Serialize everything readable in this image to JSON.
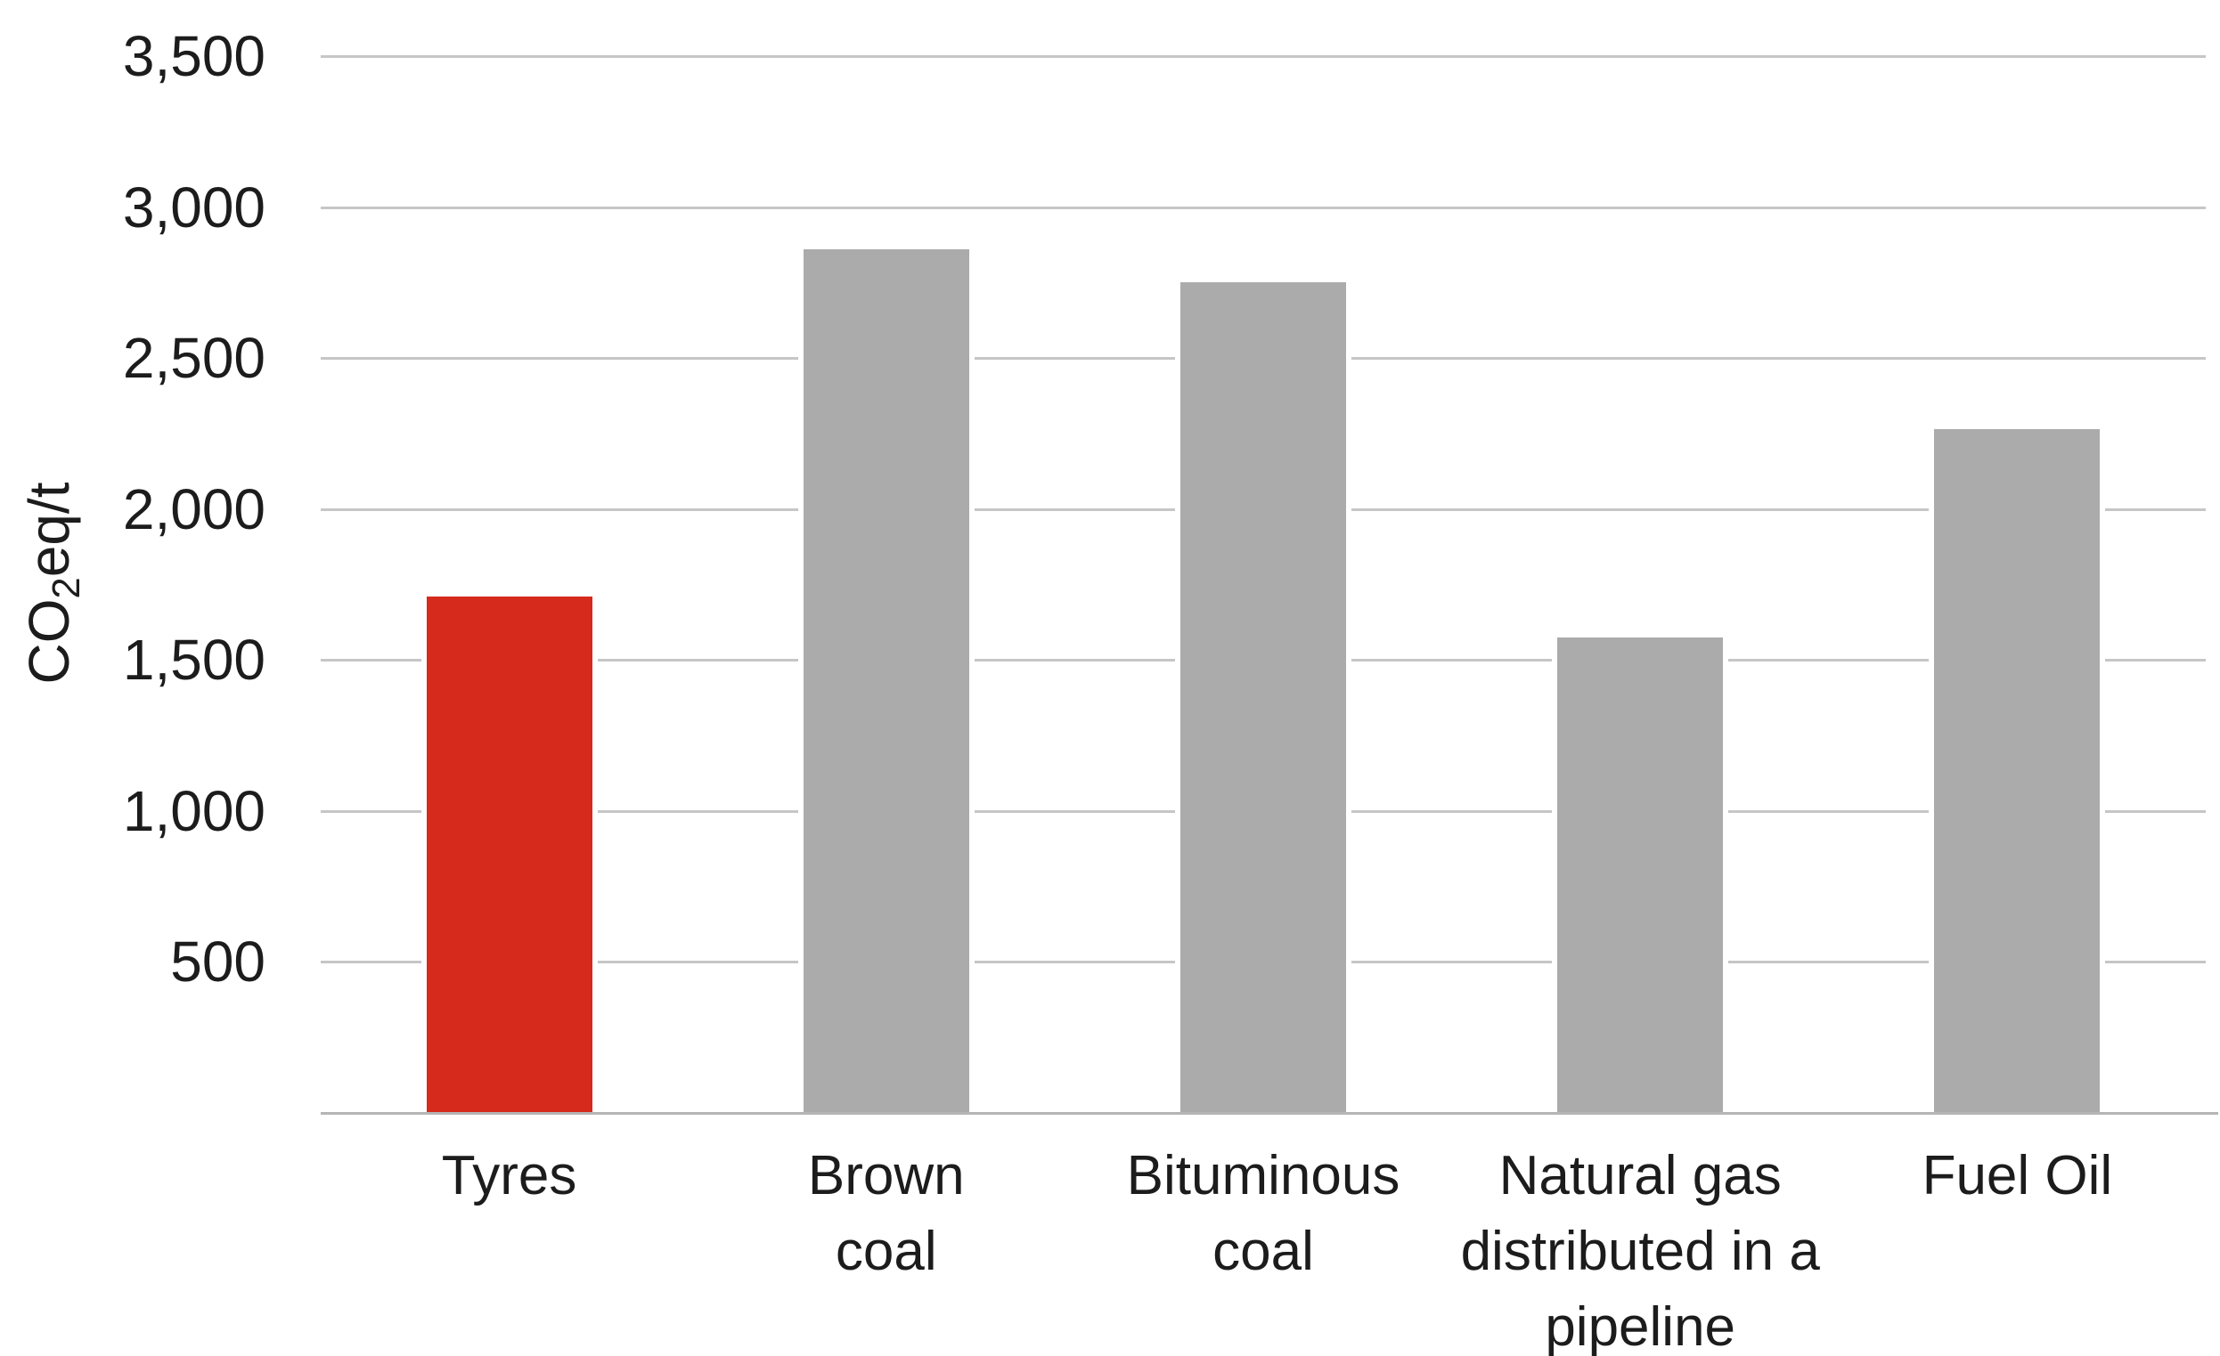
{
  "chart_data": {
    "type": "bar",
    "title": "",
    "xlabel": "",
    "ylabel": "CO2eq/t",
    "ylabel_parts": {
      "prefix": "CO",
      "sub": "2",
      "suffix": "eq/t"
    },
    "categories": [
      "Tyres",
      "Brown coal",
      "Bituminous coal",
      "Natural gas distributed in a pipeline",
      "Fuel Oil"
    ],
    "category_lines": [
      [
        "Tyres"
      ],
      [
        "Brown",
        "coal"
      ],
      [
        "Bituminous",
        "coal"
      ],
      [
        "Natural gas",
        "distributed in a",
        "pipeline"
      ],
      [
        "Fuel Oil"
      ]
    ],
    "values": [
      1710,
      2860,
      2750,
      1575,
      2265
    ],
    "bar_colors": [
      "#d62a1c",
      "#ababab",
      "#ababab",
      "#ababab",
      "#ababab"
    ],
    "highlight_index": 0,
    "ylim": [
      0,
      3500
    ],
    "y_ticks": [
      500,
      1000,
      1500,
      2000,
      2500,
      3000,
      3500
    ],
    "y_tick_labels": [
      "500",
      "1,000",
      "1,500",
      "2,000",
      "2,500",
      "3,000",
      "3,500"
    ],
    "grid": true,
    "legend": false,
    "colors": {
      "highlight": "#d62a1c",
      "default_bar": "#ababab",
      "gridline": "#c6c6c6",
      "baseline": "#b5b5b5",
      "text": "#1c1c1c",
      "background": "#ffffff"
    }
  }
}
